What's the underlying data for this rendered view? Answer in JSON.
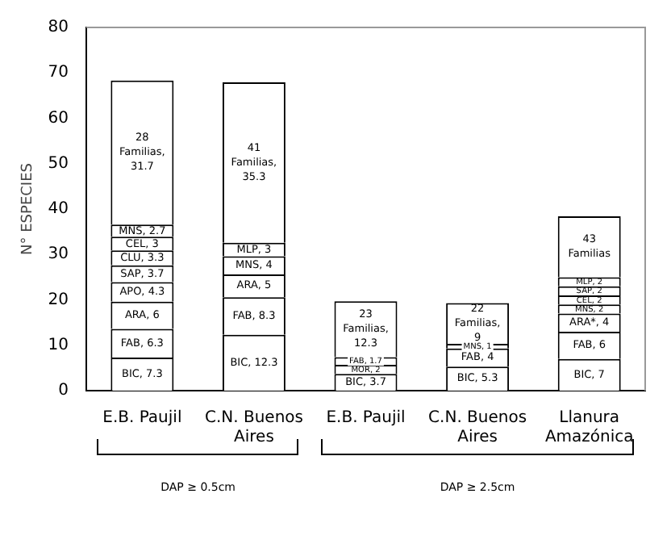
{
  "chart_data": {
    "type": "bar",
    "stacked": true,
    "ylabel": "N° ESPECIES",
    "categories": [
      "E.B. Paujil",
      "C.N. Buenos Aires",
      "E.B. Paujil",
      "C.N. Buenos Aires",
      "Llanura Amazónica"
    ],
    "series": [
      {
        "color": "#ffffff",
        "values": [
          7.3,
          12.3,
          3.7,
          5.3,
          7
        ],
        "value_labels": [
          "BIC, 7.3",
          "BIC, 12.3",
          "BIC, 3.7",
          "BIC, 5.3",
          "BIC, 7"
        ]
      },
      {
        "color": "#ffffff",
        "values": [
          6.3,
          8.3,
          2,
          4,
          6
        ],
        "value_labels": [
          "FAB, 6.3",
          "FAB, 8.3",
          "MOR, 2",
          "FAB, 4",
          "FAB, 6"
        ]
      },
      {
        "color": "#ffffff",
        "values": [
          6,
          5,
          1.7,
          1,
          4
        ],
        "value_labels": [
          "ARA, 6",
          "ARA, 5",
          "FAB, 1.7",
          "MNS, 1",
          "ARA*, 4"
        ]
      },
      {
        "color": "#ffffff",
        "values": [
          4.3,
          4,
          12.3,
          9,
          2
        ],
        "value_labels": [
          "APO, 4.3",
          "MNS, 4",
          "23 Familias, 12.3",
          "22 Familias, 9",
          "MNS, 2"
        ]
      },
      {
        "color": "#ffffff",
        "values": [
          3.7,
          3,
          null,
          null,
          2
        ],
        "value_labels": [
          "SAP, 3.7",
          "MLP, 3",
          null,
          null,
          "CEL, 2"
        ]
      },
      {
        "color": "#ffffff",
        "values": [
          3.3,
          35.3,
          null,
          null,
          2
        ],
        "value_labels": [
          "CLU, 3.3",
          "41 Familias, 35.3",
          null,
          null,
          "SAP, 2"
        ]
      },
      {
        "color": "#ffffff",
        "values": [
          3,
          null,
          null,
          null,
          2
        ],
        "value_labels": [
          "CEL, 3",
          null,
          null,
          null,
          "MLP, 2"
        ]
      },
      {
        "color": "#ffffff",
        "values": [
          2.7,
          null,
          null,
          null,
          13.4
        ],
        "value_labels": [
          "MNS, 2.7",
          null,
          null,
          null,
          null
        ]
      },
      {
        "color": "#ffffff",
        "values": [
          31.7,
          null,
          null,
          null,
          null
        ],
        "value_labels": [
          "28 Familias, 31.7",
          null,
          null,
          null,
          null
        ]
      }
    ],
    "ylim": [
      0,
      80
    ],
    "yticks": [
      0,
      10,
      20,
      30,
      40,
      50,
      60,
      70,
      80
    ],
    "grid": false,
    "legend": false,
    "annotations": [
      "DAP ≥ 0.5cm",
      "DAP ≥ 2.5cm",
      "43 Familias"
    ]
  }
}
